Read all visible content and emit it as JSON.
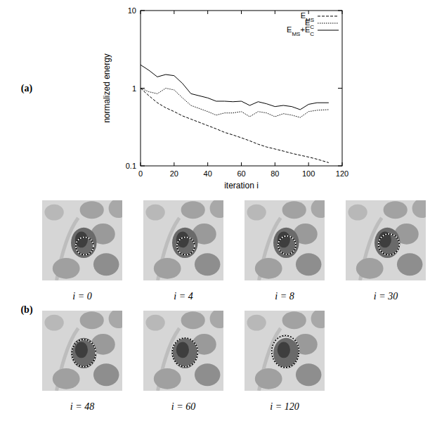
{
  "chart_data": {
    "type": "line",
    "x_label": "iteration i",
    "y_label": "normalized energy",
    "x": [
      0,
      5,
      10,
      15,
      20,
      25,
      30,
      40,
      45,
      50,
      55,
      60,
      65,
      70,
      75,
      80,
      85,
      90,
      95,
      100,
      105,
      112
    ],
    "series": [
      {
        "name": "EMS",
        "color": "#000000",
        "line_style": "dashed",
        "values": [
          1.0,
          0.8,
          0.65,
          0.56,
          0.5,
          0.44,
          0.4,
          0.33,
          0.3,
          0.27,
          0.25,
          0.23,
          0.21,
          0.19,
          0.175,
          0.165,
          0.155,
          0.145,
          0.137,
          0.13,
          0.122,
          0.11
        ]
      },
      {
        "name": "EC",
        "color": "#000000",
        "line_style": "dotted",
        "values": [
          1.0,
          0.9,
          0.85,
          1.0,
          0.95,
          0.75,
          0.6,
          0.5,
          0.45,
          0.48,
          0.48,
          0.5,
          0.43,
          0.5,
          0.48,
          0.43,
          0.47,
          0.45,
          0.42,
          0.5,
          0.52,
          0.53
        ]
      },
      {
        "name": "EMS+EC",
        "color": "#000000",
        "line_style": "solid",
        "values": [
          2.0,
          1.7,
          1.4,
          1.5,
          1.45,
          1.15,
          0.85,
          0.75,
          0.68,
          0.68,
          0.67,
          0.68,
          0.6,
          0.67,
          0.63,
          0.58,
          0.6,
          0.58,
          0.53,
          0.62,
          0.65,
          0.65
        ]
      }
    ],
    "xlim": [
      0,
      120
    ],
    "xticks": [
      0,
      20,
      40,
      60,
      80,
      100,
      120
    ],
    "ylim": [
      0.1,
      10
    ],
    "yticks": [
      0.1,
      1,
      10
    ],
    "log": "y",
    "grid": false,
    "legend": "upper right"
  },
  "panel_labels": [
    "(a)",
    "(b)"
  ],
  "frames": [
    {
      "label": "i = 0"
    },
    {
      "label": "i = 4"
    },
    {
      "label": "i = 8"
    },
    {
      "label": "i = 30"
    },
    {
      "label": "i = 48"
    },
    {
      "label": "i = 60"
    },
    {
      "label": "i = 120"
    }
  ]
}
